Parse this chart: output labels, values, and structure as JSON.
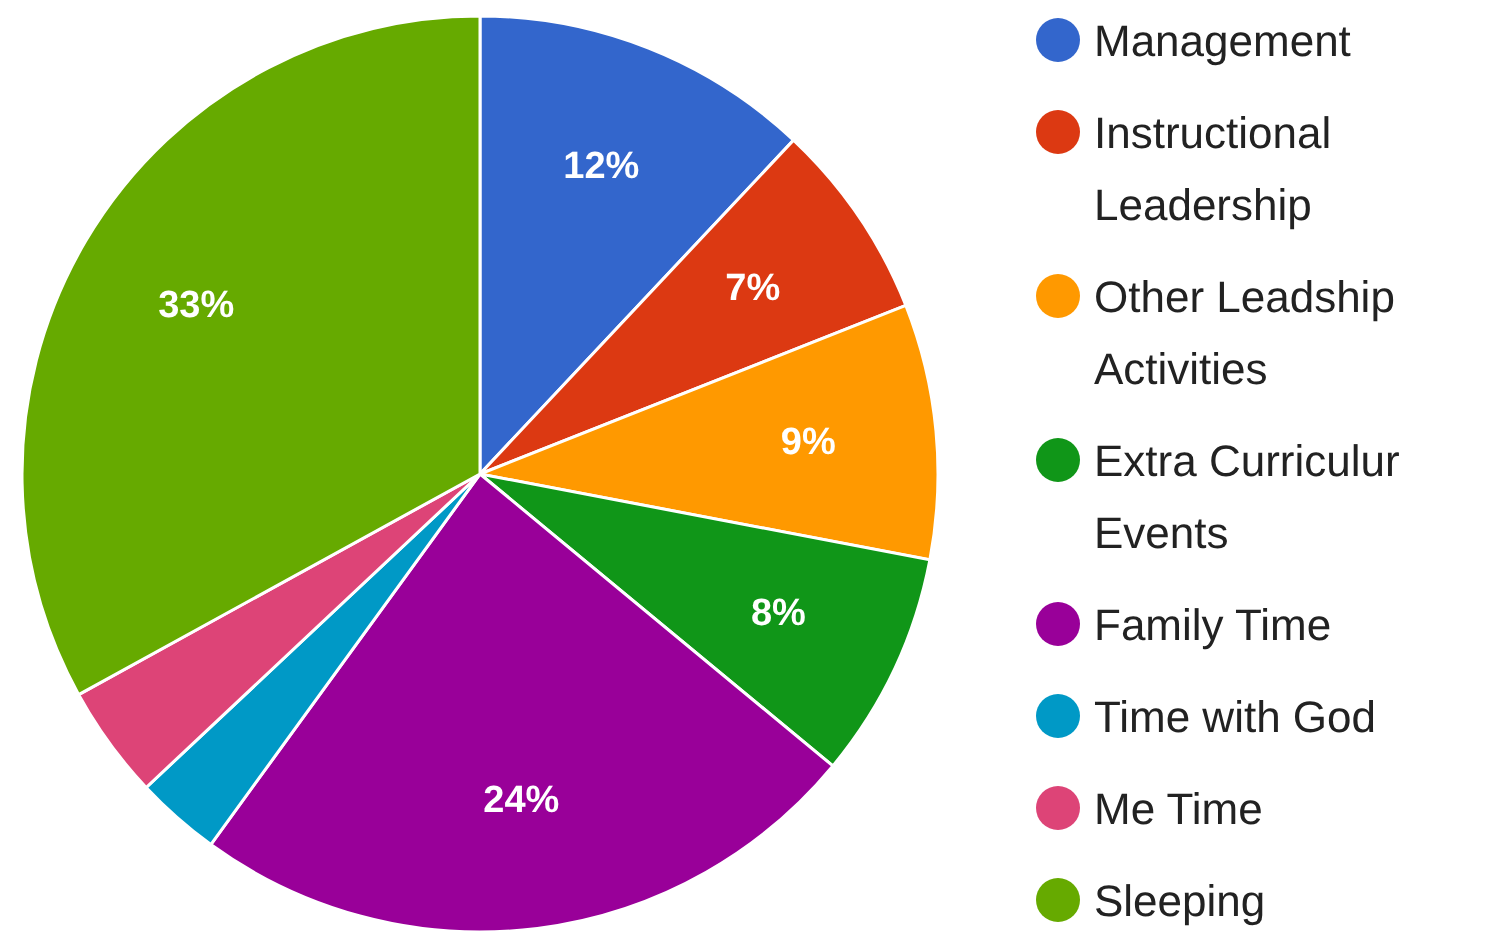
{
  "chart_data": {
    "type": "pie",
    "categories": [
      "Management",
      "Instructional Leadership",
      "Other Leadship Activities",
      "Extra Curriculur Events",
      "Family Time",
      "Time with God",
      "Me Time",
      "Sleeping"
    ],
    "values": [
      12,
      7,
      9,
      8,
      24,
      3,
      4,
      33
    ],
    "colors": [
      "#3366cc",
      "#dc3912",
      "#ff9900",
      "#109618",
      "#990099",
      "#0099c6",
      "#dd4477",
      "#66aa00"
    ],
    "value_labels": [
      "12%",
      "7%",
      "9%",
      "8%",
      "24%",
      null,
      null,
      "33%"
    ],
    "legend": "right"
  }
}
